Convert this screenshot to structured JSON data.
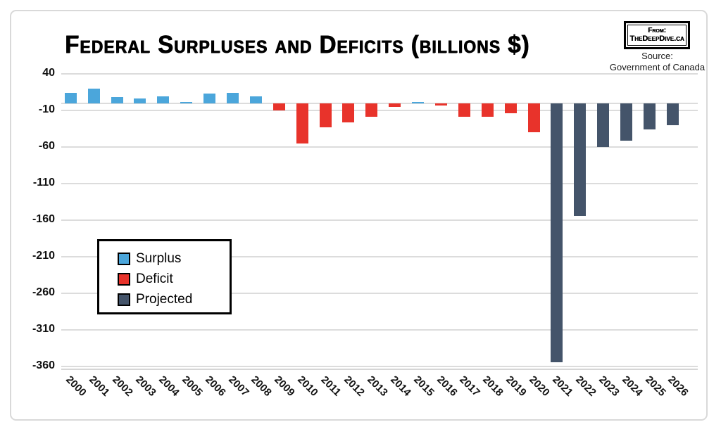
{
  "header": {
    "title": "Federal Surpluses and Deficits (billions $)",
    "badge": {
      "line1": "From:",
      "line2": "TheDeepDive.ca"
    },
    "source": {
      "line1": "Source:",
      "line2": "Government of Canada"
    }
  },
  "legend": {
    "items": [
      {
        "label": "Surplus",
        "color": "#4ba6db"
      },
      {
        "label": "Deficit",
        "color": "#e8332b"
      },
      {
        "label": "Projected",
        "color": "#44546a"
      }
    ]
  },
  "colors": {
    "surplus": "#4ba6db",
    "deficit": "#e8332b",
    "projected": "#44546a",
    "gridline": "#dcdcdc"
  },
  "chart_data": {
    "type": "bar",
    "title": "Federal Surpluses and Deficits (billions $)",
    "xlabel": "",
    "ylabel": "",
    "ylim": [
      -370,
      45
    ],
    "yticks": [
      40,
      -10,
      -60,
      -110,
      -160,
      -210,
      -260,
      -310,
      -360
    ],
    "grid": true,
    "legend_position": "center-left",
    "categories": [
      "2000",
      "2001",
      "2002",
      "2003",
      "2004",
      "2005",
      "2006",
      "2007",
      "2008",
      "2009",
      "2010",
      "2011",
      "2012",
      "2013",
      "2014",
      "2015",
      "2016",
      "2017",
      "2018",
      "2019",
      "2020",
      "2021",
      "2022",
      "2023",
      "2024",
      "2025",
      "2026"
    ],
    "values": [
      14.3,
      19.9,
      8.0,
      6.6,
      9.1,
      1.5,
      13.2,
      13.8,
      9.6,
      -9.7,
      -55.6,
      -33.4,
      -26.3,
      -18.4,
      -5.2,
      1.9,
      -2.9,
      -19.0,
      -19.0,
      -14.0,
      -39.4,
      -354.2,
      -154.7,
      -59.7,
      -51.0,
      -35.8,
      -30.4
    ],
    "series_type": [
      "surplus",
      "surplus",
      "surplus",
      "surplus",
      "surplus",
      "surplus",
      "surplus",
      "surplus",
      "surplus",
      "deficit",
      "deficit",
      "deficit",
      "deficit",
      "deficit",
      "deficit",
      "surplus",
      "deficit",
      "deficit",
      "deficit",
      "deficit",
      "deficit",
      "projected",
      "projected",
      "projected",
      "projected",
      "projected",
      "projected"
    ]
  }
}
